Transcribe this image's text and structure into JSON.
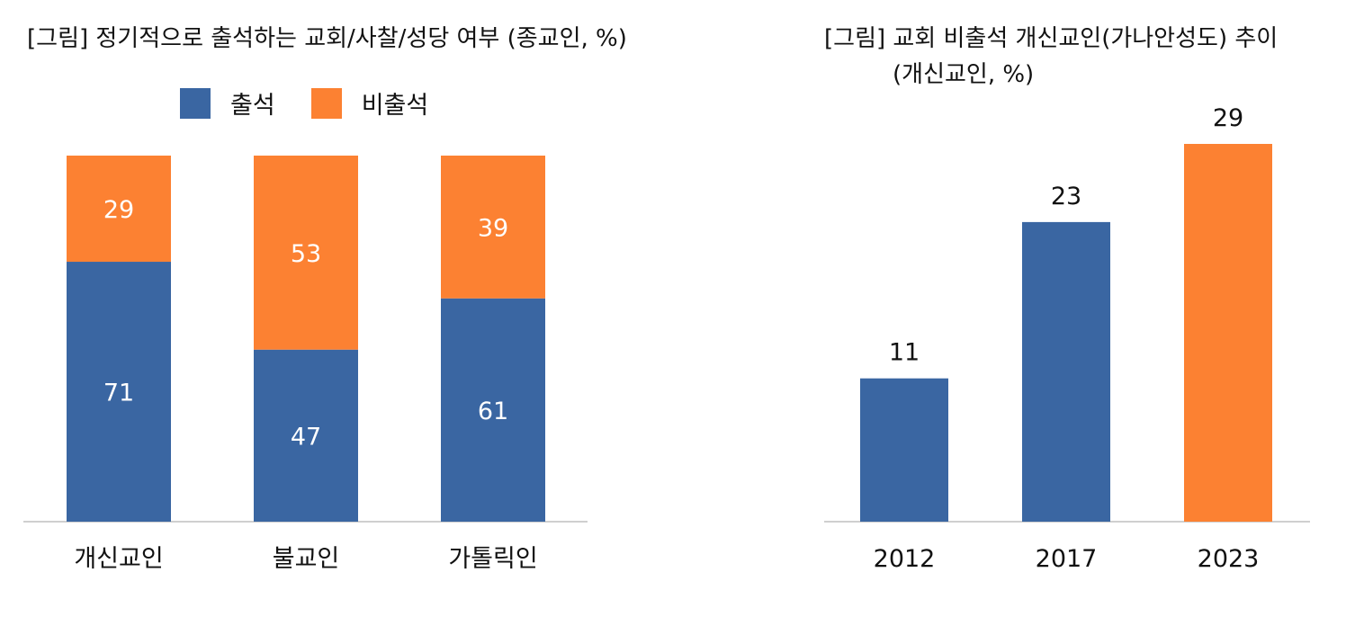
{
  "colors": {
    "attend": "#3A66A2",
    "nonattend": "#FC8132",
    "axis": "#BFBFBF",
    "label_light": "#FFFFFF",
    "label_dark": "#111111"
  },
  "chart_data": [
    {
      "type": "bar",
      "stacked": true,
      "title": "[그림] 정기적으로 출석하는 교회/사찰/성당 여부 (종교인, %)",
      "categories": [
        "개신교인",
        "불교인",
        "가톨릭인"
      ],
      "series": [
        {
          "name": "출석",
          "values": [
            71,
            47,
            61
          ]
        },
        {
          "name": "비출석",
          "values": [
            29,
            53,
            39
          ]
        }
      ],
      "ylim": [
        0,
        100
      ],
      "legend": "top",
      "grid": false
    },
    {
      "type": "bar",
      "title_line1": "[그림] 교회 비출석 개신교인(가나안성도) 추이",
      "title_line2": "(개신교인, %)",
      "categories": [
        "2012",
        "2017",
        "2023"
      ],
      "values": [
        11,
        23,
        29
      ],
      "highlight_last": true,
      "ylim": [
        0,
        32
      ],
      "grid": false
    }
  ]
}
